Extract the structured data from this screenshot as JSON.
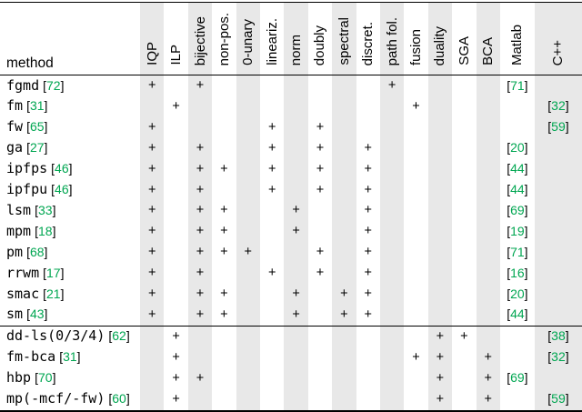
{
  "colors": {
    "stripe_gray": "#e8e8e8",
    "citation_green": "#00a651",
    "rule_black": "#000000",
    "background": "#ffffff"
  },
  "cite_brackets": {
    "open": "[",
    "close": "]"
  },
  "table": {
    "method_header_label": "method",
    "plus_symbol": "+",
    "columns": [
      {
        "label": "IQP",
        "striped": true
      },
      {
        "label": "ILP",
        "striped": false
      },
      {
        "label": "bijective",
        "striped": true
      },
      {
        "label": "non-pos.",
        "striped": false
      },
      {
        "label": "0-unary",
        "striped": true
      },
      {
        "label": "lineariz.",
        "striped": false
      },
      {
        "label": "norm",
        "striped": true
      },
      {
        "label": "doubly",
        "striped": false
      },
      {
        "label": "spectral",
        "striped": true
      },
      {
        "label": "discret.",
        "striped": false
      },
      {
        "label": "path fol.",
        "striped": true
      },
      {
        "label": "fusion",
        "striped": false
      },
      {
        "label": "duality",
        "striped": true
      },
      {
        "label": "SGA",
        "striped": false
      },
      {
        "label": "BCA",
        "striped": true
      },
      {
        "label": "Matlab",
        "striped": false
      },
      {
        "label": "C++",
        "striped": true
      }
    ],
    "sections": [
      {
        "rows": [
          {
            "method": "fgmd",
            "ref": "72",
            "marks": [
              "IQP",
              "bijective",
              "path fol."
            ],
            "impl": {
              "column": "Matlab",
              "ref": "71"
            }
          },
          {
            "method": "fm",
            "ref": "31",
            "marks": [
              "ILP",
              "fusion"
            ],
            "impl": {
              "column": "C++",
              "ref": "32"
            }
          },
          {
            "method": "fw",
            "ref": "65",
            "marks": [
              "IQP",
              "lineariz.",
              "doubly"
            ],
            "impl": {
              "column": "C++",
              "ref": "59"
            }
          },
          {
            "method": "ga",
            "ref": "27",
            "marks": [
              "IQP",
              "bijective",
              "lineariz.",
              "doubly",
              "discret."
            ],
            "impl": {
              "column": "Matlab",
              "ref": "20"
            }
          },
          {
            "method": "ipfps",
            "ref": "46",
            "marks": [
              "IQP",
              "bijective",
              "non-pos.",
              "lineariz.",
              "doubly",
              "discret."
            ],
            "impl": {
              "column": "Matlab",
              "ref": "44"
            }
          },
          {
            "method": "ipfpu",
            "ref": "46",
            "marks": [
              "IQP",
              "bijective",
              "lineariz.",
              "doubly",
              "discret."
            ],
            "impl": {
              "column": "Matlab",
              "ref": "44"
            }
          },
          {
            "method": "lsm",
            "ref": "33",
            "marks": [
              "IQP",
              "bijective",
              "non-pos.",
              "norm",
              "discret."
            ],
            "impl": {
              "column": "Matlab",
              "ref": "69"
            }
          },
          {
            "method": "mpm",
            "ref": "18",
            "marks": [
              "IQP",
              "bijective",
              "non-pos.",
              "norm",
              "discret."
            ],
            "impl": {
              "column": "Matlab",
              "ref": "19"
            }
          },
          {
            "method": "pm",
            "ref": "68",
            "marks": [
              "IQP",
              "bijective",
              "non-pos.",
              "0-unary",
              "doubly",
              "discret."
            ],
            "impl": {
              "column": "Matlab",
              "ref": "71"
            }
          },
          {
            "method": "rrwm",
            "ref": "17",
            "marks": [
              "IQP",
              "bijective",
              "lineariz.",
              "doubly",
              "discret."
            ],
            "impl": {
              "column": "Matlab",
              "ref": "16"
            }
          },
          {
            "method": "smac",
            "ref": "21",
            "marks": [
              "IQP",
              "bijective",
              "non-pos.",
              "norm",
              "spectral",
              "discret."
            ],
            "impl": {
              "column": "Matlab",
              "ref": "20"
            }
          },
          {
            "method": "sm",
            "ref": "43",
            "marks": [
              "IQP",
              "bijective",
              "non-pos.",
              "norm",
              "spectral",
              "discret."
            ],
            "impl": {
              "column": "Matlab",
              "ref": "44"
            }
          }
        ]
      },
      {
        "rows": [
          {
            "method": "dd-ls(0/3/4)",
            "ref": "62",
            "marks": [
              "ILP",
              "duality",
              "SGA"
            ],
            "impl": {
              "column": "C++",
              "ref": "38"
            }
          },
          {
            "method": "fm-bca",
            "ref": "31",
            "marks": [
              "ILP",
              "fusion",
              "duality",
              "BCA"
            ],
            "impl": {
              "column": "C++",
              "ref": "32"
            }
          },
          {
            "method": "hbp",
            "ref": "70",
            "marks": [
              "ILP",
              "bijective",
              "duality",
              "BCA"
            ],
            "impl": {
              "column": "Matlab",
              "ref": "69"
            }
          },
          {
            "method": "mp(-mcf/-fw)",
            "ref": "60",
            "marks": [
              "ILP",
              "duality",
              "BCA"
            ],
            "impl": {
              "column": "C++",
              "ref": "59"
            }
          }
        ]
      }
    ]
  }
}
